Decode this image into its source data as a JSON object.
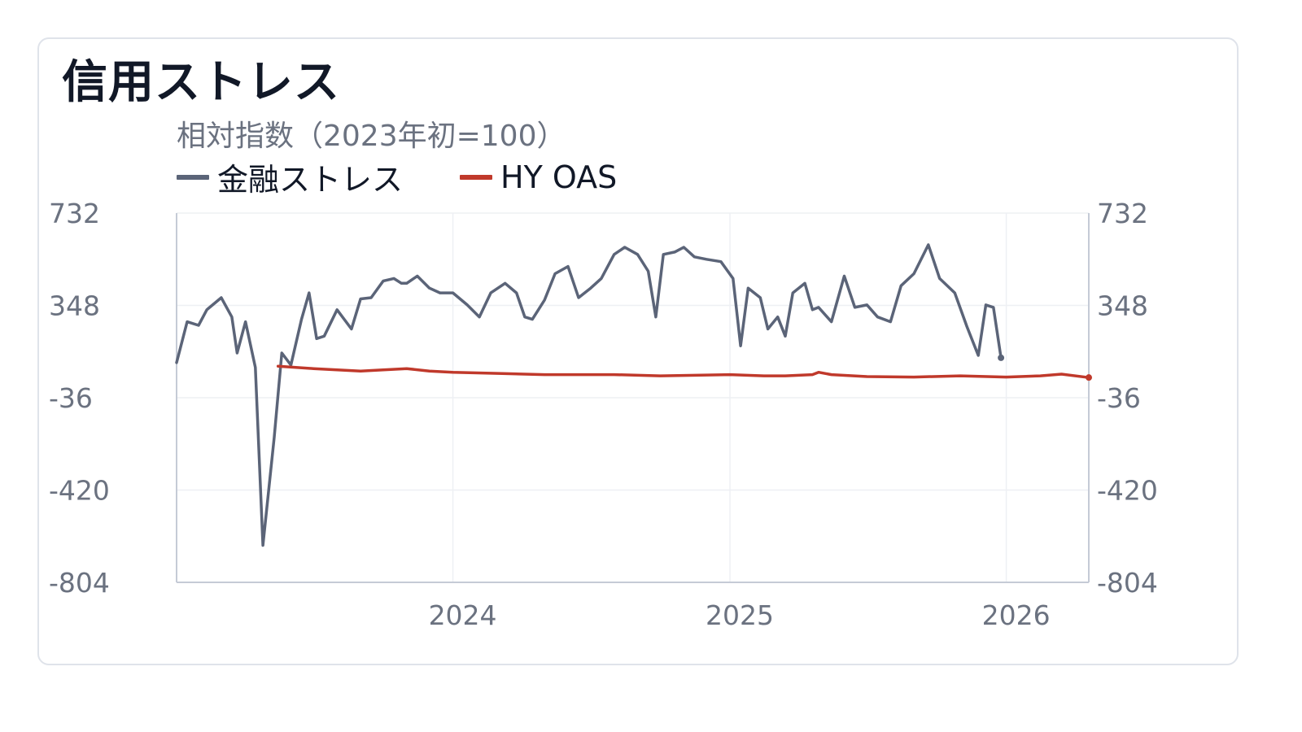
{
  "title": "信用ストレス",
  "subtitle": "相対指数（2023年初=100）",
  "legend": [
    {
      "label": "金融ストレス",
      "color": "#5b6478"
    },
    {
      "label": "HY OAS",
      "color": "#c0392b"
    }
  ],
  "chart_data": {
    "type": "line",
    "title": "信用ストレス",
    "subtitle": "相対指数（2023年初=100）",
    "ylim": [
      -804,
      732
    ],
    "yticks": [
      "732",
      "348",
      "-36",
      "-420",
      "-804"
    ],
    "xlim": [
      "2023-01-01",
      "2026-04-20"
    ],
    "xticks": [
      {
        "label": "2024",
        "date": "2024-01-01"
      },
      {
        "label": "2025",
        "date": "2025-01-01"
      },
      {
        "label": "2026",
        "date": "2026-01-01"
      }
    ],
    "grid": true,
    "legend_position": "top-left",
    "series": [
      {
        "name": "金融ストレス",
        "color": "#5b6478",
        "points": [
          [
            "2023-01-01",
            110
          ],
          [
            "2023-01-15",
            280
          ],
          [
            "2023-01-30",
            265
          ],
          [
            "2023-02-10",
            330
          ],
          [
            "2023-03-01",
            380
          ],
          [
            "2023-03-15",
            300
          ],
          [
            "2023-03-22",
            150
          ],
          [
            "2023-04-02",
            280
          ],
          [
            "2023-04-15",
            90
          ],
          [
            "2023-04-25",
            -650
          ],
          [
            "2023-05-10",
            -200
          ],
          [
            "2023-05-20",
            150
          ],
          [
            "2023-06-01",
            100
          ],
          [
            "2023-06-15",
            290
          ],
          [
            "2023-06-25",
            400
          ],
          [
            "2023-07-05",
            210
          ],
          [
            "2023-07-15",
            220
          ],
          [
            "2023-08-01",
            330
          ],
          [
            "2023-08-20",
            250
          ],
          [
            "2023-09-01",
            375
          ],
          [
            "2023-09-15",
            380
          ],
          [
            "2023-10-01",
            450
          ],
          [
            "2023-10-15",
            460
          ],
          [
            "2023-10-25",
            440
          ],
          [
            "2023-11-01",
            440
          ],
          [
            "2023-11-15",
            470
          ],
          [
            "2023-12-01",
            420
          ],
          [
            "2023-12-15",
            400
          ],
          [
            "2024-01-01",
            400
          ],
          [
            "2024-01-20",
            350
          ],
          [
            "2024-02-05",
            300
          ],
          [
            "2024-02-20",
            400
          ],
          [
            "2024-03-10",
            440
          ],
          [
            "2024-03-25",
            400
          ],
          [
            "2024-04-05",
            300
          ],
          [
            "2024-04-15",
            290
          ],
          [
            "2024-05-01",
            370
          ],
          [
            "2024-05-15",
            480
          ],
          [
            "2024-06-01",
            510
          ],
          [
            "2024-06-15",
            380
          ],
          [
            "2024-07-01",
            420
          ],
          [
            "2024-07-15",
            460
          ],
          [
            "2024-08-01",
            560
          ],
          [
            "2024-08-15",
            590
          ],
          [
            "2024-09-01",
            560
          ],
          [
            "2024-09-15",
            490
          ],
          [
            "2024-09-25",
            300
          ],
          [
            "2024-10-05",
            560
          ],
          [
            "2024-10-20",
            570
          ],
          [
            "2024-11-01",
            590
          ],
          [
            "2024-11-15",
            550
          ],
          [
            "2024-12-01",
            540
          ],
          [
            "2024-12-20",
            530
          ],
          [
            "2025-01-05",
            460
          ],
          [
            "2025-01-15",
            180
          ],
          [
            "2025-01-25",
            420
          ],
          [
            "2025-02-10",
            380
          ],
          [
            "2025-02-20",
            250
          ],
          [
            "2025-03-05",
            300
          ],
          [
            "2025-03-15",
            220
          ],
          [
            "2025-03-25",
            400
          ],
          [
            "2025-04-10",
            440
          ],
          [
            "2025-04-20",
            330
          ],
          [
            "2025-04-28",
            340
          ],
          [
            "2025-05-15",
            280
          ],
          [
            "2025-06-01",
            470
          ],
          [
            "2025-06-15",
            340
          ],
          [
            "2025-07-01",
            350
          ],
          [
            "2025-07-15",
            300
          ],
          [
            "2025-08-01",
            280
          ],
          [
            "2025-08-15",
            430
          ],
          [
            "2025-09-01",
            480
          ],
          [
            "2025-09-20",
            600
          ],
          [
            "2025-10-05",
            460
          ],
          [
            "2025-10-25",
            400
          ],
          [
            "2025-11-10",
            260
          ],
          [
            "2025-11-25",
            140
          ],
          [
            "2025-12-05",
            350
          ],
          [
            "2025-12-15",
            340
          ],
          [
            "2025-12-25",
            130
          ]
        ]
      },
      {
        "name": "HY OAS",
        "color": "#c0392b",
        "points": [
          [
            "2023-05-15",
            95
          ],
          [
            "2023-07-01",
            85
          ],
          [
            "2023-09-01",
            75
          ],
          [
            "2023-10-01",
            80
          ],
          [
            "2023-11-01",
            85
          ],
          [
            "2023-12-01",
            75
          ],
          [
            "2024-01-01",
            70
          ],
          [
            "2024-03-01",
            65
          ],
          [
            "2024-05-01",
            60
          ],
          [
            "2024-06-01",
            60
          ],
          [
            "2024-08-01",
            60
          ],
          [
            "2024-10-01",
            55
          ],
          [
            "2025-01-01",
            60
          ],
          [
            "2025-02-15",
            55
          ],
          [
            "2025-03-15",
            55
          ],
          [
            "2025-04-20",
            60
          ],
          [
            "2025-04-28",
            70
          ],
          [
            "2025-05-15",
            60
          ],
          [
            "2025-07-01",
            52
          ],
          [
            "2025-09-01",
            50
          ],
          [
            "2025-11-01",
            55
          ],
          [
            "2026-01-01",
            50
          ],
          [
            "2026-02-15",
            55
          ],
          [
            "2026-03-15",
            62
          ],
          [
            "2026-04-20",
            48
          ]
        ]
      }
    ]
  }
}
